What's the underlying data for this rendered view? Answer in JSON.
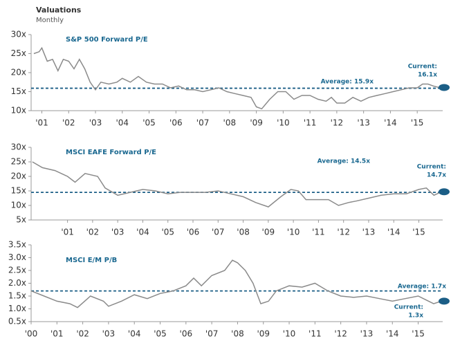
{
  "header": {
    "title": "Valuations",
    "subtitle": "Monthly"
  },
  "chart_data": [
    {
      "type": "line",
      "title": "S&P 500 Forward P/E",
      "color": "#8a8a8a",
      "average_color": "#1b5e86",
      "average": 15.9,
      "average_label": "Average: 15.9x",
      "current": 16.1,
      "current_label": [
        "Current:",
        "16.1x"
      ],
      "x": [
        2000.7,
        2000.9,
        2001.0,
        2001.2,
        2001.4,
        2001.6,
        2001.8,
        2002.0,
        2002.2,
        2002.4,
        2002.6,
        2002.8,
        2003.0,
        2003.2,
        2003.5,
        2003.8,
        2004.0,
        2004.3,
        2004.6,
        2004.9,
        2005.2,
        2005.5,
        2005.8,
        2006.1,
        2006.4,
        2006.7,
        2007.0,
        2007.3,
        2007.6,
        2007.9,
        2008.2,
        2008.5,
        2008.8,
        2009.0,
        2009.2,
        2009.5,
        2009.8,
        2010.1,
        2010.4,
        2010.7,
        2011.0,
        2011.3,
        2011.6,
        2011.8,
        2012.0,
        2012.3,
        2012.6,
        2012.9,
        2013.2,
        2013.5,
        2013.8,
        2014.1,
        2014.4,
        2014.7,
        2015.0,
        2015.2,
        2015.4,
        2015.6,
        2015.8
      ],
      "values": [
        25,
        25.5,
        26.5,
        23,
        23.5,
        20.5,
        23.5,
        23,
        21,
        23.5,
        21,
        17.5,
        15.5,
        17.5,
        17,
        17.5,
        18.5,
        17.5,
        19,
        17.5,
        17,
        17,
        16,
        16.5,
        15.5,
        15.5,
        15,
        15.5,
        16,
        15,
        14.5,
        14,
        13.5,
        11,
        10.5,
        13,
        15,
        15,
        13,
        14,
        14,
        13,
        12.5,
        13.5,
        12,
        12,
        13.5,
        12.5,
        13.5,
        14,
        14.5,
        15,
        15.5,
        16,
        16,
        17,
        17,
        16.5,
        16.1
      ],
      "xlim": [
        2000.6,
        2015.95
      ],
      "ylim": [
        10,
        30
      ],
      "xticks": [
        {
          "value": 2001,
          "label": "'01"
        },
        {
          "value": 2002,
          "label": "'02"
        },
        {
          "value": 2003,
          "label": "'03"
        },
        {
          "value": 2004,
          "label": "'04"
        },
        {
          "value": 2005,
          "label": "'05"
        },
        {
          "value": 2006,
          "label": "'06"
        },
        {
          "value": 2007,
          "label": "'07"
        },
        {
          "value": 2008,
          "label": "'08"
        },
        {
          "value": 2009,
          "label": "'09"
        },
        {
          "value": 2010,
          "label": "'10"
        },
        {
          "value": 2011,
          "label": "'11"
        },
        {
          "value": 2012,
          "label": "'12"
        },
        {
          "value": 2013,
          "label": "'13"
        },
        {
          "value": 2014,
          "label": "'14"
        },
        {
          "value": 2015,
          "label": "'15"
        }
      ],
      "yticks": [
        {
          "value": 10,
          "label": "10x"
        },
        {
          "value": 15,
          "label": "15x"
        },
        {
          "value": 20,
          "label": "20x"
        },
        {
          "value": 25,
          "label": "25x"
        },
        {
          "value": 30,
          "label": "30x"
        }
      ]
    },
    {
      "type": "line",
      "title": "MSCI EAFE Forward P/E",
      "color": "#8a8a8a",
      "average_color": "#1b5e86",
      "average": 14.5,
      "average_label": "Average: 14.5x",
      "current": 14.7,
      "current_label": [
        "Current:",
        "14.7x"
      ],
      "x": [
        1999.6,
        2000.0,
        2000.5,
        2001.0,
        2001.3,
        2001.7,
        2002.2,
        2002.5,
        2003.0,
        2003.5,
        2004.0,
        2004.5,
        2005.0,
        2005.5,
        2006.0,
        2006.5,
        2007.0,
        2007.5,
        2008.0,
        2008.5,
        2009.0,
        2009.5,
        2009.9,
        2010.2,
        2010.5,
        2011.0,
        2011.4,
        2011.8,
        2012.2,
        2012.5,
        2013.0,
        2013.5,
        2014.0,
        2014.5,
        2015.0,
        2015.3,
        2015.6,
        2015.9
      ],
      "values": [
        25,
        23,
        22,
        20,
        18,
        21,
        20,
        16,
        13.5,
        14.5,
        15.5,
        15,
        14,
        14.5,
        14.5,
        14.5,
        15,
        14,
        13,
        11,
        9.5,
        13,
        15.5,
        15,
        12,
        12,
        12,
        10,
        11,
        11.5,
        12.5,
        13.5,
        14,
        14,
        15.5,
        16,
        13.5,
        14.7
      ],
      "xlim": [
        1999.55,
        2015.95
      ],
      "ylim": [
        5,
        30
      ],
      "xticks": [
        {
          "value": 2001,
          "label": "'01"
        },
        {
          "value": 2002,
          "label": "'02"
        },
        {
          "value": 2003,
          "label": "'03"
        },
        {
          "value": 2004,
          "label": "'04"
        },
        {
          "value": 2005,
          "label": "'05"
        },
        {
          "value": 2006,
          "label": "'06"
        },
        {
          "value": 2007,
          "label": "'07"
        },
        {
          "value": 2008,
          "label": "'08"
        },
        {
          "value": 2009,
          "label": "'09"
        },
        {
          "value": 2010,
          "label": "'10"
        },
        {
          "value": 2011,
          "label": "'11"
        },
        {
          "value": 2012,
          "label": "'12"
        },
        {
          "value": 2013,
          "label": "'13"
        },
        {
          "value": 2014,
          "label": "'14"
        },
        {
          "value": 2015,
          "label": "'15"
        }
      ],
      "yticks": [
        {
          "value": 5,
          "label": "5x"
        },
        {
          "value": 10,
          "label": "10x"
        },
        {
          "value": 15,
          "label": "15x"
        },
        {
          "value": 20,
          "label": "20x"
        },
        {
          "value": 25,
          "label": "25x"
        },
        {
          "value": 30,
          "label": "30x"
        }
      ]
    },
    {
      "type": "line",
      "title": "MSCI E/M P/B",
      "color": "#8a8a8a",
      "average_color": "#1b5e86",
      "average": 1.7,
      "average_label": "Average: 1.7x",
      "current": 1.3,
      "current_label": [
        "Current:",
        "1.3x"
      ],
      "x": [
        2000.0,
        2000.5,
        2001.0,
        2001.5,
        2001.8,
        2002.3,
        2002.8,
        2003.0,
        2003.5,
        2004.0,
        2004.5,
        2005.0,
        2005.5,
        2006.0,
        2006.3,
        2006.6,
        2007.0,
        2007.5,
        2007.8,
        2008.0,
        2008.3,
        2008.6,
        2008.9,
        2009.2,
        2009.5,
        2010.0,
        2010.5,
        2011.0,
        2011.5,
        2012.0,
        2012.5,
        2013.0,
        2013.5,
        2014.0,
        2014.5,
        2015.0,
        2015.3,
        2015.6,
        2015.9
      ],
      "values": [
        1.7,
        1.5,
        1.3,
        1.2,
        1.05,
        1.5,
        1.3,
        1.1,
        1.3,
        1.55,
        1.4,
        1.6,
        1.7,
        1.9,
        2.2,
        1.9,
        2.3,
        2.5,
        2.9,
        2.8,
        2.5,
        2.0,
        1.2,
        1.3,
        1.7,
        1.9,
        1.85,
        2.0,
        1.7,
        1.5,
        1.45,
        1.5,
        1.4,
        1.3,
        1.4,
        1.5,
        1.35,
        1.2,
        1.3
      ],
      "xlim": [
        2000,
        2015.95
      ],
      "ylim": [
        0.5,
        3.5
      ],
      "xticks": [
        {
          "value": 2000,
          "label": "'00"
        },
        {
          "value": 2001,
          "label": "'01"
        },
        {
          "value": 2002,
          "label": "'02"
        },
        {
          "value": 2003,
          "label": "'03"
        },
        {
          "value": 2004,
          "label": "'04"
        },
        {
          "value": 2005,
          "label": "'05"
        },
        {
          "value": 2006,
          "label": "'06"
        },
        {
          "value": 2007,
          "label": "'07"
        },
        {
          "value": 2008,
          "label": "'08"
        },
        {
          "value": 2009,
          "label": "'09"
        },
        {
          "value": 2010,
          "label": "'10"
        },
        {
          "value": 2011,
          "label": "'11"
        },
        {
          "value": 2012,
          "label": "'12"
        },
        {
          "value": 2013,
          "label": "'13"
        },
        {
          "value": 2014,
          "label": "'14"
        },
        {
          "value": 2015,
          "label": "'15"
        }
      ],
      "yticks": [
        {
          "value": 0.5,
          "label": "0.5x"
        },
        {
          "value": 1.0,
          "label": "1.0x"
        },
        {
          "value": 1.5,
          "label": "1.5x"
        },
        {
          "value": 2.0,
          "label": "2.0x"
        },
        {
          "value": 2.5,
          "label": "2.5x"
        },
        {
          "value": 3.0,
          "label": "3.0x"
        },
        {
          "value": 3.5,
          "label": "3.5x"
        }
      ]
    }
  ]
}
